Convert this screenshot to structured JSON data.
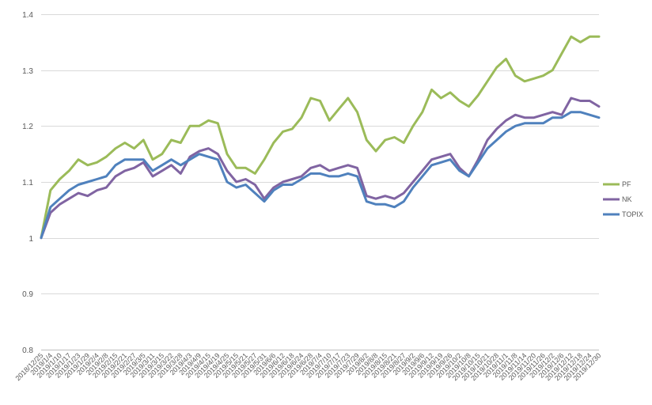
{
  "chart_data": {
    "type": "line",
    "title": "",
    "xlabel": "",
    "ylabel": "",
    "ylim": [
      0.8,
      1.4
    ],
    "yticks": [
      0.8,
      0.9,
      1.0,
      1.1,
      1.2,
      1.3,
      1.4
    ],
    "ytick_labels": [
      "0.8",
      "0.9",
      "1",
      "1.1",
      "1.2",
      "1.3",
      "1.4"
    ],
    "grid": true,
    "legend_position": "right",
    "colors": {
      "PF": "#9bbb59",
      "NK": "#8064a2",
      "TOPIX": "#4f81bd"
    },
    "x": [
      "2018/12/25",
      "2019/1/4",
      "2019/1/10",
      "2019/1/17",
      "2019/1/23",
      "2019/1/29",
      "2019/2/4",
      "2019/2/8",
      "2019/2/15",
      "2019/2/21",
      "2019/2/27",
      "2019/3/5",
      "2019/3/11",
      "2019/3/15",
      "2019/3/22",
      "2019/3/28",
      "2019/4/3",
      "2019/4/9",
      "2019/4/15",
      "2019/4/19",
      "2019/4/25",
      "2019/5/15",
      "2019/5/21",
      "2019/5/27",
      "2019/5/31",
      "2019/6/6",
      "2019/6/12",
      "2019/6/18",
      "2019/6/24",
      "2019/6/28",
      "2019/7/4",
      "2019/7/10",
      "2019/7/17",
      "2019/7/23",
      "2019/7/29",
      "2019/8/2",
      "2019/8/8",
      "2019/8/15",
      "2019/8/21",
      "2019/8/27",
      "2019/9/2",
      "2019/9/6",
      "2019/9/12",
      "2019/9/19",
      "2019/9/26",
      "2019/10/2",
      "2019/10/8",
      "2019/10/15",
      "2019/10/21",
      "2019/10/28",
      "2019/11/1",
      "2019/11/8",
      "2019/11/14",
      "2019/11/20",
      "2019/11/26",
      "2019/12/2",
      "2019/12/6",
      "2019/12/12",
      "2019/12/18",
      "2019/12/24",
      "2019/12/30"
    ],
    "series": [
      {
        "name": "PF",
        "values": [
          1.0,
          1.085,
          1.105,
          1.12,
          1.14,
          1.13,
          1.135,
          1.145,
          1.16,
          1.17,
          1.16,
          1.175,
          1.14,
          1.15,
          1.175,
          1.17,
          1.2,
          1.2,
          1.21,
          1.205,
          1.15,
          1.125,
          1.125,
          1.115,
          1.14,
          1.17,
          1.19,
          1.195,
          1.215,
          1.25,
          1.245,
          1.21,
          1.23,
          1.25,
          1.225,
          1.175,
          1.155,
          1.175,
          1.18,
          1.17,
          1.2,
          1.225,
          1.265,
          1.25,
          1.26,
          1.245,
          1.235,
          1.255,
          1.28,
          1.305,
          1.32,
          1.29,
          1.28,
          1.285,
          1.29,
          1.3,
          1.33,
          1.36,
          1.35,
          1.36,
          1.36
        ]
      },
      {
        "name": "NK",
        "values": [
          1.0,
          1.045,
          1.06,
          1.07,
          1.08,
          1.075,
          1.085,
          1.09,
          1.11,
          1.12,
          1.125,
          1.135,
          1.11,
          1.12,
          1.13,
          1.115,
          1.145,
          1.155,
          1.16,
          1.15,
          1.12,
          1.1,
          1.105,
          1.095,
          1.07,
          1.09,
          1.1,
          1.105,
          1.11,
          1.125,
          1.13,
          1.12,
          1.125,
          1.13,
          1.125,
          1.075,
          1.07,
          1.075,
          1.07,
          1.08,
          1.1,
          1.12,
          1.14,
          1.145,
          1.15,
          1.125,
          1.11,
          1.14,
          1.175,
          1.195,
          1.21,
          1.22,
          1.215,
          1.215,
          1.22,
          1.225,
          1.22,
          1.25,
          1.245,
          1.245,
          1.235
        ]
      },
      {
        "name": "TOPIX",
        "values": [
          1.0,
          1.055,
          1.07,
          1.085,
          1.095,
          1.1,
          1.105,
          1.11,
          1.13,
          1.14,
          1.14,
          1.14,
          1.12,
          1.13,
          1.14,
          1.13,
          1.14,
          1.15,
          1.145,
          1.14,
          1.1,
          1.09,
          1.095,
          1.08,
          1.065,
          1.085,
          1.095,
          1.095,
          1.105,
          1.115,
          1.115,
          1.11,
          1.11,
          1.115,
          1.11,
          1.065,
          1.06,
          1.06,
          1.055,
          1.065,
          1.09,
          1.11,
          1.13,
          1.135,
          1.14,
          1.12,
          1.11,
          1.135,
          1.16,
          1.175,
          1.19,
          1.2,
          1.205,
          1.205,
          1.205,
          1.215,
          1.215,
          1.225,
          1.225,
          1.22,
          1.215
        ]
      }
    ]
  }
}
